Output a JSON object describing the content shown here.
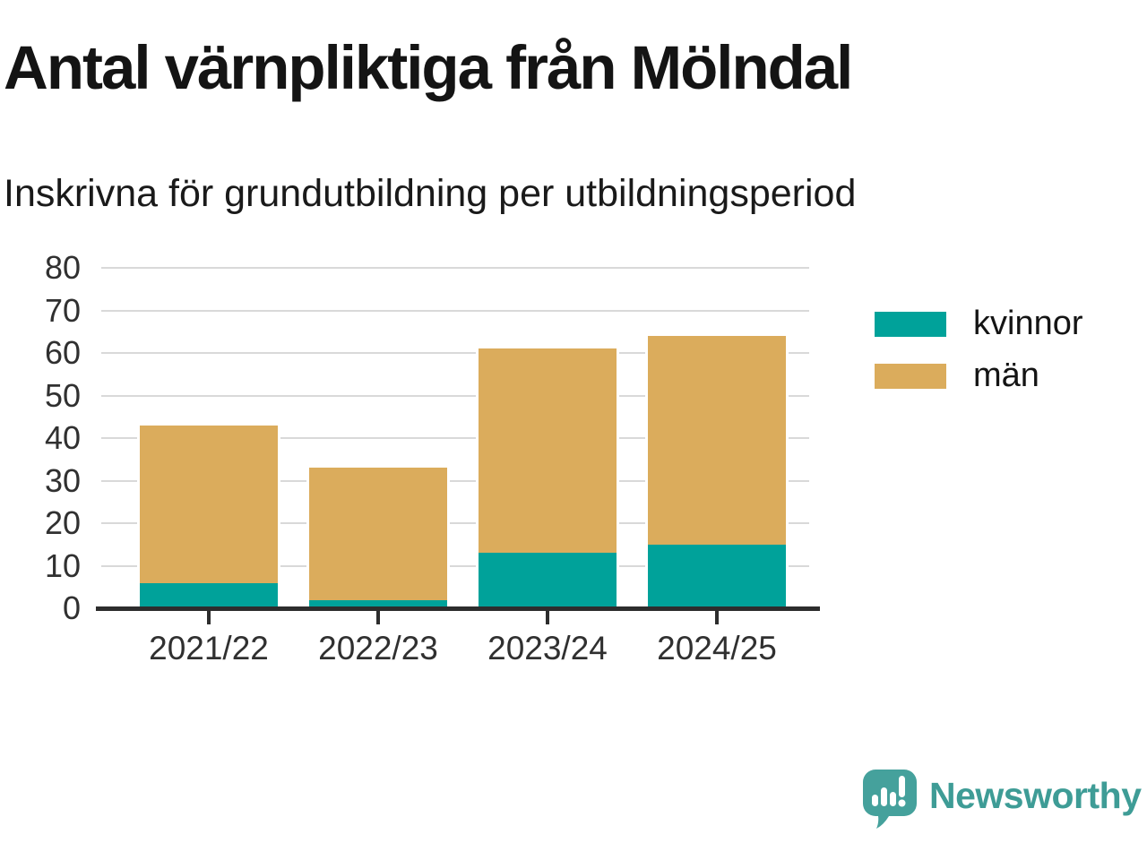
{
  "chart_data": {
    "type": "bar",
    "stacked": true,
    "title": "Antal värnpliktiga från Mölndal",
    "subtitle": "Inskrivna för grundutbildning per utbildningsperiod",
    "categories": [
      "2021/22",
      "2022/23",
      "2023/24",
      "2024/25"
    ],
    "series": [
      {
        "name": "kvinnor",
        "color": "#00A29A",
        "values": [
          6,
          2,
          13,
          15
        ]
      },
      {
        "name": "män",
        "color": "#DBAC5C",
        "values": [
          37,
          31,
          48,
          49
        ]
      }
    ],
    "totals": [
      43,
      33,
      61,
      64
    ],
    "ylim": [
      0,
      80
    ],
    "yticks": [
      0,
      10,
      20,
      30,
      40,
      50,
      60,
      70,
      80
    ],
    "grid": true,
    "legend_position": "right"
  },
  "colors": {
    "kvinnor": "#00A29A",
    "man": "#DBAC5C",
    "gridline": "#d9d9d9",
    "axis": "#2d2d2d",
    "brand_teal": "#3e9c96",
    "logo_bubble": "#45a19c"
  },
  "brand": {
    "name": "Newsworthy"
  }
}
